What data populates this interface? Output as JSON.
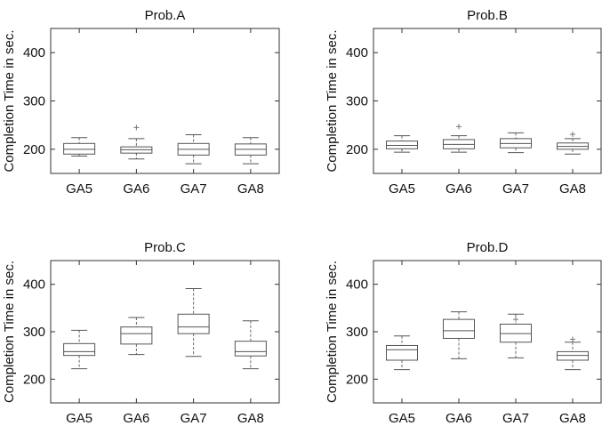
{
  "chart_data": [
    {
      "type": "box",
      "title": "Prob.A",
      "ylabel": "Completion Time in sec.",
      "ylim": [
        150,
        450
      ],
      "yticks": [
        200,
        300,
        400
      ],
      "categories": [
        "GA5",
        "GA6",
        "GA7",
        "GA8"
      ],
      "boxes": [
        {
          "min": 186,
          "q1": 190,
          "median": 200,
          "q3": 212,
          "max": 224,
          "outliers": []
        },
        {
          "min": 180,
          "q1": 192,
          "median": 199,
          "q3": 205,
          "max": 222,
          "outliers": [
            245
          ]
        },
        {
          "min": 170,
          "q1": 188,
          "median": 200,
          "q3": 212,
          "max": 230,
          "outliers": []
        },
        {
          "min": 170,
          "q1": 188,
          "median": 200,
          "q3": 211,
          "max": 224,
          "outliers": []
        }
      ]
    },
    {
      "type": "box",
      "title": "Prob.B",
      "ylabel": "Completion Time in sec.",
      "ylim": [
        150,
        450
      ],
      "yticks": [
        200,
        300,
        400
      ],
      "categories": [
        "GA5",
        "GA6",
        "GA7",
        "GA8"
      ],
      "boxes": [
        {
          "min": 194,
          "q1": 201,
          "median": 208,
          "q3": 217,
          "max": 228,
          "outliers": []
        },
        {
          "min": 194,
          "q1": 201,
          "median": 210,
          "q3": 220,
          "max": 228,
          "outliers": [
            247
          ]
        },
        {
          "min": 193,
          "q1": 203,
          "median": 212,
          "q3": 222,
          "max": 234,
          "outliers": []
        },
        {
          "min": 190,
          "q1": 200,
          "median": 206,
          "q3": 213,
          "max": 222,
          "outliers": [
            231
          ]
        }
      ]
    },
    {
      "type": "box",
      "title": "Prob.C",
      "ylabel": "Completion Time in sec.",
      "ylim": [
        150,
        450
      ],
      "yticks": [
        200,
        300,
        400
      ],
      "categories": [
        "GA5",
        "GA6",
        "GA7",
        "GA8"
      ],
      "boxes": [
        {
          "min": 222,
          "q1": 250,
          "median": 258,
          "q3": 275,
          "max": 303,
          "outliers": []
        },
        {
          "min": 252,
          "q1": 274,
          "median": 296,
          "q3": 310,
          "max": 330,
          "outliers": []
        },
        {
          "min": 248,
          "q1": 296,
          "median": 310,
          "q3": 337,
          "max": 391,
          "outliers": []
        },
        {
          "min": 222,
          "q1": 249,
          "median": 258,
          "q3": 280,
          "max": 323,
          "outliers": []
        }
      ]
    },
    {
      "type": "box",
      "title": "Prob.D",
      "ylabel": "Completion Time in sec.",
      "ylim": [
        150,
        450
      ],
      "yticks": [
        200,
        300,
        400
      ],
      "categories": [
        "GA5",
        "GA6",
        "GA7",
        "GA8"
      ],
      "boxes": [
        {
          "min": 220,
          "q1": 240,
          "median": 262,
          "q3": 271,
          "max": 291,
          "outliers": []
        },
        {
          "min": 243,
          "q1": 286,
          "median": 302,
          "q3": 326,
          "max": 342,
          "outliers": []
        },
        {
          "min": 245,
          "q1": 278,
          "median": 296,
          "q3": 316,
          "max": 337,
          "outliers": [
            326
          ]
        },
        {
          "min": 220,
          "q1": 240,
          "median": 250,
          "q3": 258,
          "max": 278,
          "outliers": [
            284
          ]
        }
      ]
    }
  ]
}
